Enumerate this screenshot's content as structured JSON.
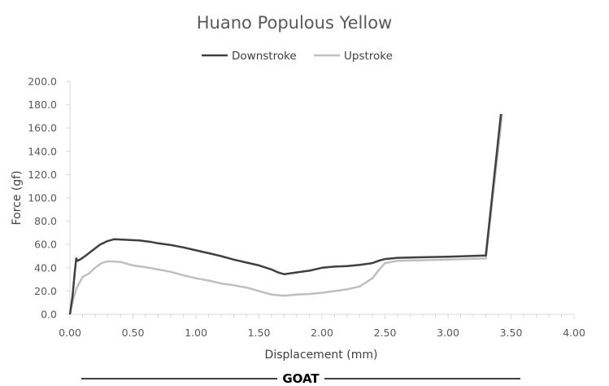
{
  "chart_data": {
    "type": "line",
    "title": "Huano Populous Yellow",
    "xlabel": "Displacement (mm)",
    "ylabel": "Force (gf)",
    "xlim": [
      0,
      4
    ],
    "ylim": [
      0,
      200
    ],
    "x_ticks": [
      "0.00",
      "0.50",
      "1.00",
      "1.50",
      "2.00",
      "2.50",
      "3.00",
      "3.50",
      "4.00"
    ],
    "y_ticks": [
      "0.0",
      "20.0",
      "40.0",
      "60.0",
      "80.0",
      "100.0",
      "120.0",
      "140.0",
      "160.0",
      "180.0",
      "200.0"
    ],
    "legend_position": "top",
    "grid": false,
    "series": [
      {
        "name": "Downstroke",
        "color": "#404040",
        "points": [
          [
            0.0,
            0
          ],
          [
            0.02,
            15
          ],
          [
            0.04,
            38
          ],
          [
            0.05,
            48
          ],
          [
            0.06,
            46
          ],
          [
            0.08,
            47
          ],
          [
            0.12,
            50
          ],
          [
            0.18,
            55
          ],
          [
            0.24,
            60
          ],
          [
            0.3,
            63
          ],
          [
            0.35,
            64.5
          ],
          [
            0.45,
            64
          ],
          [
            0.55,
            63.5
          ],
          [
            0.65,
            62
          ],
          [
            0.7,
            61
          ],
          [
            0.8,
            59.5
          ],
          [
            0.9,
            57.5
          ],
          [
            1.0,
            55
          ],
          [
            1.1,
            52.5
          ],
          [
            1.2,
            50
          ],
          [
            1.3,
            47
          ],
          [
            1.4,
            44.5
          ],
          [
            1.5,
            42
          ],
          [
            1.6,
            38.5
          ],
          [
            1.65,
            36
          ],
          [
            1.7,
            34.5
          ],
          [
            1.8,
            36
          ],
          [
            1.9,
            37.5
          ],
          [
            2.0,
            40
          ],
          [
            2.1,
            41
          ],
          [
            2.2,
            41.5
          ],
          [
            2.3,
            42.5
          ],
          [
            2.4,
            44
          ],
          [
            2.45,
            46
          ],
          [
            2.5,
            47.5
          ],
          [
            2.6,
            48.5
          ],
          [
            2.8,
            49
          ],
          [
            3.0,
            49.5
          ],
          [
            3.3,
            50.5
          ],
          [
            3.42,
            172
          ]
        ]
      },
      {
        "name": "Upstroke",
        "color": "#bfbfbf",
        "points": [
          [
            0.0,
            0
          ],
          [
            0.02,
            10
          ],
          [
            0.05,
            22
          ],
          [
            0.08,
            28
          ],
          [
            0.1,
            32
          ],
          [
            0.15,
            35
          ],
          [
            0.2,
            40
          ],
          [
            0.25,
            44
          ],
          [
            0.3,
            45.5
          ],
          [
            0.4,
            45
          ],
          [
            0.5,
            42
          ],
          [
            0.6,
            40.5
          ],
          [
            0.7,
            38.5
          ],
          [
            0.8,
            36.5
          ],
          [
            0.9,
            33.5
          ],
          [
            1.0,
            31
          ],
          [
            1.1,
            29
          ],
          [
            1.2,
            26.5
          ],
          [
            1.3,
            25
          ],
          [
            1.4,
            23
          ],
          [
            1.5,
            20
          ],
          [
            1.6,
            17
          ],
          [
            1.7,
            16
          ],
          [
            1.8,
            17
          ],
          [
            1.9,
            17.5
          ],
          [
            2.0,
            18.5
          ],
          [
            2.1,
            20
          ],
          [
            2.2,
            21.5
          ],
          [
            2.3,
            24
          ],
          [
            2.4,
            31
          ],
          [
            2.45,
            38
          ],
          [
            2.5,
            44
          ],
          [
            2.6,
            46
          ],
          [
            2.8,
            46.5
          ],
          [
            3.0,
            47
          ],
          [
            3.3,
            48
          ],
          [
            3.43,
            172
          ]
        ]
      }
    ]
  },
  "footer": {
    "label": "GOAT"
  }
}
